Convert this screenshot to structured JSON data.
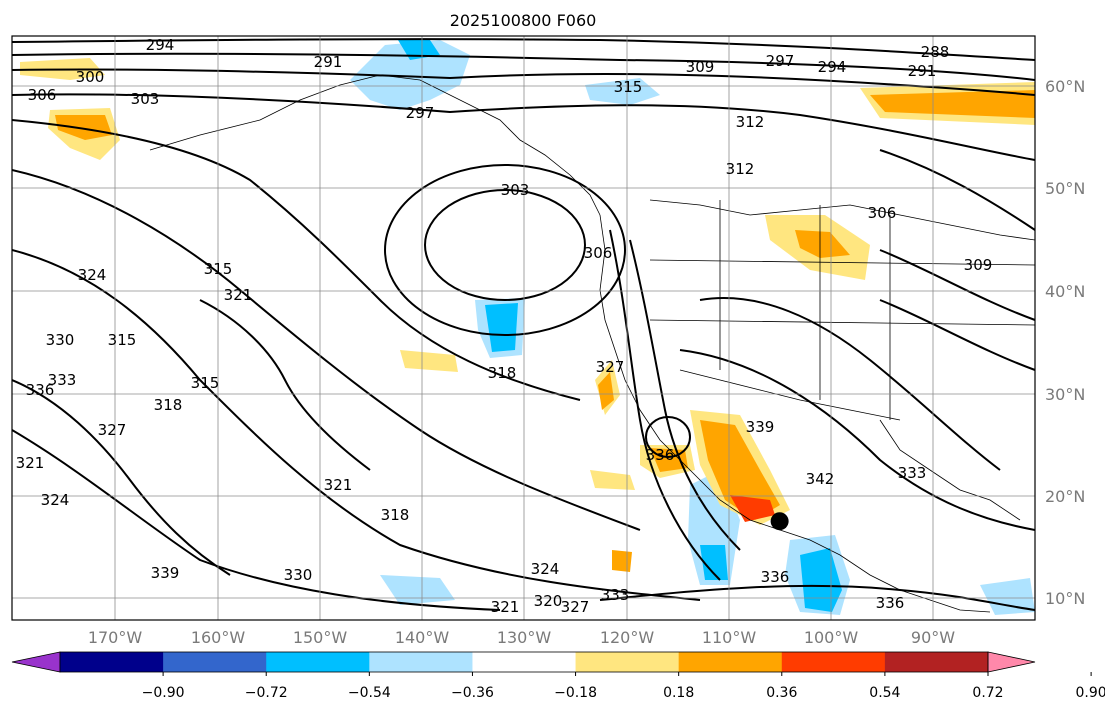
{
  "title": "2025100800 F060",
  "longitude_labels": [
    "170°W",
    "160°W",
    "150°W",
    "140°W",
    "130°W",
    "120°W",
    "110°W",
    "100°W",
    "90°W"
  ],
  "latitude_labels": [
    "60°N",
    "50°N",
    "40°N",
    "30°N",
    "20°N",
    "10°N"
  ],
  "contour_labels": [
    "294",
    "291",
    "309",
    "297",
    "294",
    "291",
    "288",
    "306",
    "303",
    "300",
    "315",
    "297",
    "312",
    "312",
    "306",
    "303",
    "306",
    "309",
    "315",
    "321",
    "324",
    "330",
    "333",
    "336",
    "315",
    "315",
    "318",
    "318",
    "327",
    "321",
    "318",
    "321",
    "324",
    "339",
    "330",
    "339",
    "342",
    "333",
    "336",
    "324",
    "320",
    "327",
    "333",
    "336",
    "336",
    "321",
    "327"
  ],
  "colorbar": {
    "tick_labels": [
      "−0.90",
      "−0.72",
      "−0.54",
      "−0.36",
      "−0.18",
      "0.18",
      "0.36",
      "0.54",
      "0.72",
      "0.90"
    ],
    "colors": [
      "#9933cc",
      "#00008b",
      "#3366cc",
      "#00bfff",
      "#aee3ff",
      "#ffffff",
      "#ffe680",
      "#ffa500",
      "#ff3c00",
      "#b22222",
      "#ff88aa"
    ]
  },
  "shading_colors": {
    "light_blue": "#aee3ff",
    "blue": "#00bfff",
    "yellow": "#ffe680",
    "orange": "#ffa500",
    "red_orange": "#ff3c00"
  },
  "marker": {
    "lon": -105,
    "lat": 17.5,
    "color": "#000000"
  }
}
